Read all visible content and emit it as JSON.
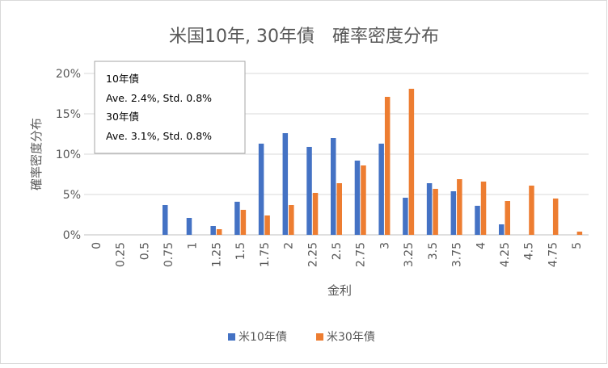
{
  "chart_data": {
    "type": "bar",
    "title": "米国10年, 30年債　確率密度分布",
    "xlabel": "金利",
    "ylabel": "確率密度分布",
    "ylim": [
      0,
      20
    ],
    "yticks": [
      "0%",
      "5%",
      "10%",
      "15%",
      "20%"
    ],
    "grid": true,
    "legend_position": "bottom",
    "categories": [
      "0",
      "0.25",
      "0.5",
      "0.75",
      "1",
      "1.25",
      "1.5",
      "1.75",
      "2",
      "2.25",
      "2.5",
      "2.75",
      "3",
      "3.25",
      "3.5",
      "3.75",
      "4",
      "4.25",
      "4.5",
      "4.75",
      "5"
    ],
    "series": [
      {
        "name": "米10年債",
        "color": "#4472C4",
        "values": [
          0,
          0,
          0,
          3.7,
          2.1,
          1.1,
          4.1,
          11.3,
          12.6,
          10.9,
          12.0,
          9.2,
          11.3,
          4.6,
          6.4,
          5.4,
          3.6,
          1.3,
          0,
          0,
          0
        ]
      },
      {
        "name": "米30年債",
        "color": "#ED7D31",
        "values": [
          0,
          0,
          0,
          0,
          0,
          0.7,
          3.1,
          2.4,
          3.7,
          5.2,
          6.4,
          8.6,
          17.1,
          18.1,
          5.7,
          6.9,
          6.6,
          4.2,
          6.1,
          4.5,
          0.4
        ]
      }
    ],
    "annotation": {
      "lines": [
        "10年債",
        "Ave. 2.4%, Std. 0.8%",
        "30年債",
        "Ave. 3.1%, Std. 0.8%"
      ]
    }
  }
}
